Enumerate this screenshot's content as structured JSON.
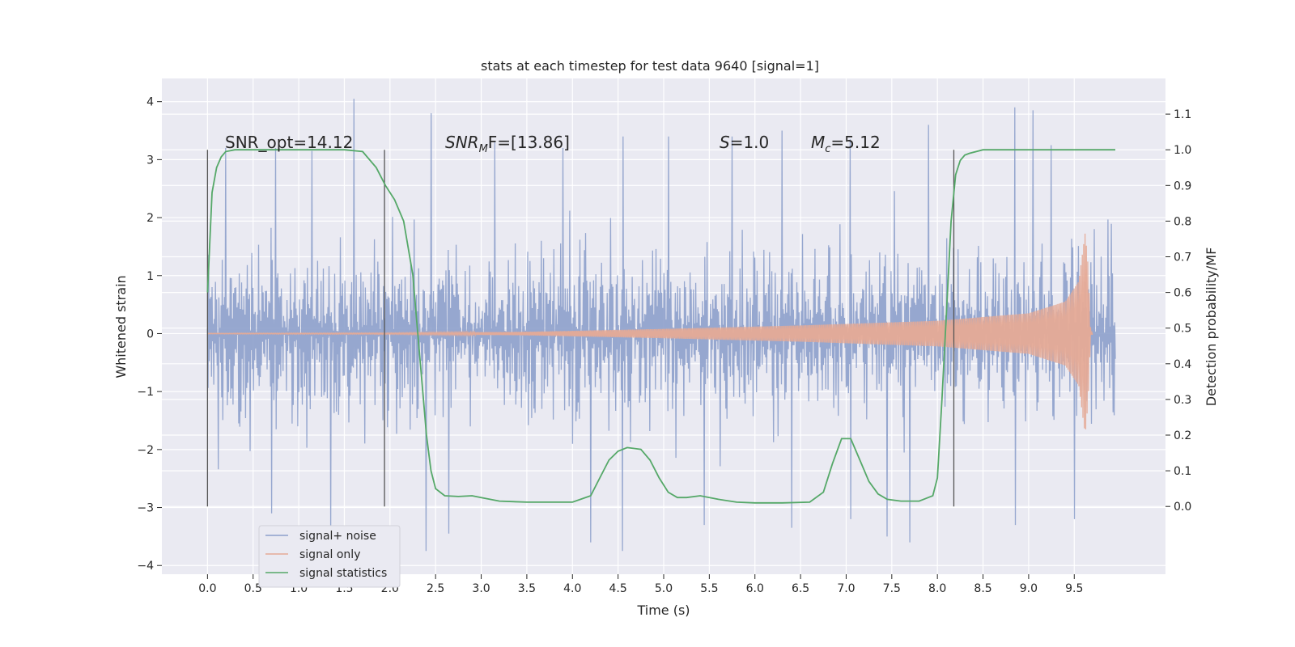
{
  "chart_data": {
    "type": "line",
    "title": "stats at each timestep for test data 9640 [signal=1]",
    "xlabel": "Time (s)",
    "ylabel_left": "Whitened strain",
    "ylabel_right": "Detection probability/MF",
    "xlim": [
      -0.5,
      10.5
    ],
    "ylim_left": [
      -4.15,
      4.4
    ],
    "ylim_right": [
      -0.19,
      1.2
    ],
    "xticks": [
      0.0,
      0.5,
      1.0,
      1.5,
      2.0,
      2.5,
      3.0,
      3.5,
      4.0,
      4.5,
      5.0,
      5.5,
      6.0,
      6.5,
      7.0,
      7.5,
      8.0,
      8.5,
      9.0,
      9.5
    ],
    "xtick_labels": [
      "0.0",
      "0.5",
      "1.0",
      "1.5",
      "2.0",
      "2.5",
      "3.0",
      "3.5",
      "4.0",
      "4.5",
      "5.0",
      "5.5",
      "6.0",
      "6.5",
      "7.0",
      "7.5",
      "8.0",
      "8.5",
      "9.0",
      "9.5"
    ],
    "yticks_left": [
      -4,
      -3,
      -2,
      -1,
      0,
      1,
      2,
      3,
      4
    ],
    "ytick_labels_left": [
      "−4",
      "−3",
      "−2",
      "−1",
      "0",
      "1",
      "2",
      "3",
      "4"
    ],
    "yticks_right": [
      0.0,
      0.1,
      0.2,
      0.3,
      0.4,
      0.5,
      0.6,
      0.7,
      0.8,
      0.9,
      1.0,
      1.1
    ],
    "ytick_labels_right": [
      "0.0",
      "0.1",
      "0.2",
      "0.3",
      "0.4",
      "0.5",
      "0.6",
      "0.7",
      "0.8",
      "0.9",
      "1.0",
      "1.1"
    ],
    "grid": true,
    "legend_position": "lower-left",
    "annotations": {
      "snr_opt": "SNR_opt=14.12",
      "snr_mf_base": "SNR",
      "snr_mf_sub": "M",
      "snr_mf_rest": "F=[13.86]",
      "s_label": "S",
      "s_value": "=1.0",
      "mc_base": "M",
      "mc_sub": "c",
      "mc_value": "=5.12"
    },
    "detection_markers_x": [
      0.0,
      1.94,
      8.18
    ],
    "marker_range_right": [
      0.0,
      1.0
    ],
    "series": [
      {
        "name": "signal+ noise",
        "color": "#8da0cb",
        "noise_std": 0.7,
        "x_range": [
          0.0,
          9.95
        ],
        "peak_values": [
          [
            0.2,
            3.2
          ],
          [
            0.75,
            3.2
          ],
          [
            1.15,
            3.15
          ],
          [
            1.6,
            4.05
          ],
          [
            2.45,
            3.8
          ],
          [
            3.15,
            3.3
          ],
          [
            3.9,
            3.2
          ],
          [
            4.55,
            3.4
          ],
          [
            5.05,
            3.4
          ],
          [
            5.75,
            3.4
          ],
          [
            6.3,
            3.5
          ],
          [
            7.05,
            3.35
          ],
          [
            7.9,
            3.6
          ],
          [
            8.85,
            3.9
          ],
          [
            9.05,
            3.85
          ],
          [
            9.25,
            3.25
          ]
        ],
        "trough_values": [
          [
            0.7,
            -3.1
          ],
          [
            1.35,
            -3.4
          ],
          [
            2.4,
            -3.75
          ],
          [
            2.65,
            -3.45
          ],
          [
            4.2,
            -3.6
          ],
          [
            4.55,
            -3.75
          ],
          [
            5.45,
            -3.3
          ],
          [
            6.4,
            -3.35
          ],
          [
            7.05,
            -3.2
          ],
          [
            7.45,
            -3.5
          ],
          [
            7.7,
            -3.6
          ],
          [
            8.85,
            -3.3
          ],
          [
            9.5,
            -3.2
          ]
        ]
      },
      {
        "name": "signal only",
        "color": "#e5aa96",
        "x_range": [
          0.0,
          9.65
        ],
        "amplitude": [
          [
            0.0,
            0.005
          ],
          [
            2.0,
            0.01
          ],
          [
            3.5,
            0.03
          ],
          [
            5.0,
            0.08
          ],
          [
            6.5,
            0.14
          ],
          [
            8.0,
            0.22
          ],
          [
            9.0,
            0.35
          ],
          [
            9.4,
            0.55
          ],
          [
            9.55,
            0.9
          ],
          [
            9.62,
            1.75
          ],
          [
            9.65,
            1.2
          ],
          [
            9.68,
            0.02
          ]
        ]
      },
      {
        "name": "signal statistics",
        "color": "#55a868",
        "axis": "right",
        "x": [
          0.0,
          0.05,
          0.1,
          0.15,
          0.2,
          0.3,
          0.5,
          1.0,
          1.5,
          1.7,
          1.85,
          1.95,
          2.05,
          2.15,
          2.25,
          2.3,
          2.35,
          2.4,
          2.45,
          2.5,
          2.6,
          2.75,
          2.9,
          3.0,
          3.2,
          3.5,
          4.0,
          4.2,
          4.3,
          4.4,
          4.5,
          4.6,
          4.75,
          4.85,
          4.95,
          5.05,
          5.15,
          5.25,
          5.4,
          5.6,
          5.8,
          6.0,
          6.3,
          6.6,
          6.75,
          6.85,
          6.95,
          7.05,
          7.15,
          7.25,
          7.35,
          7.45,
          7.6,
          7.8,
          7.95,
          8.0,
          8.05,
          8.1,
          8.15,
          8.2,
          8.25,
          8.3,
          8.35,
          8.5,
          9.0,
          9.5,
          9.95
        ],
        "values": [
          0.6,
          0.88,
          0.95,
          0.98,
          0.995,
          1.0,
          1.0,
          1.0,
          1.0,
          0.995,
          0.95,
          0.9,
          0.86,
          0.8,
          0.65,
          0.5,
          0.35,
          0.2,
          0.1,
          0.05,
          0.03,
          0.028,
          0.03,
          0.025,
          0.015,
          0.012,
          0.012,
          0.03,
          0.08,
          0.13,
          0.155,
          0.165,
          0.16,
          0.13,
          0.08,
          0.04,
          0.025,
          0.025,
          0.03,
          0.02,
          0.012,
          0.01,
          0.01,
          0.012,
          0.04,
          0.12,
          0.19,
          0.19,
          0.13,
          0.07,
          0.035,
          0.02,
          0.015,
          0.015,
          0.03,
          0.08,
          0.3,
          0.55,
          0.8,
          0.93,
          0.97,
          0.985,
          0.99,
          1.0,
          1.0,
          1.0,
          1.0
        ]
      }
    ]
  }
}
